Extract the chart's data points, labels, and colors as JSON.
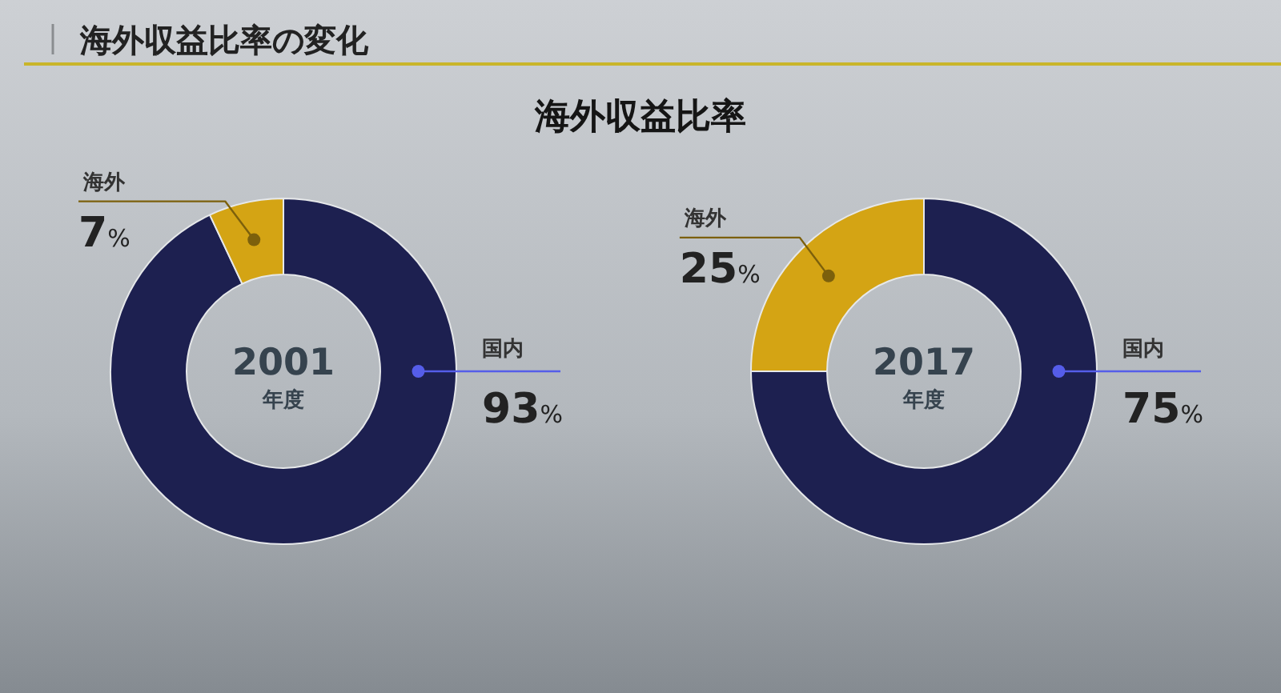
{
  "chart_data": [
    {
      "type": "donut",
      "title": "海外収益比率の変化",
      "subtitle": "海外収益比率",
      "categories": [
        "国内",
        "海外"
      ],
      "values": [
        93,
        7
      ],
      "colors": [
        "#1d2050",
        "#d4a414"
      ],
      "value_labels": [
        "93%",
        "7%"
      ],
      "annotations": [
        "2001",
        "年度"
      ]
    },
    {
      "type": "donut",
      "categories": [
        "国内",
        "海外"
      ],
      "values": [
        75,
        25
      ],
      "colors": [
        "#1d2050",
        "#d4a414"
      ],
      "value_labels": [
        "75%",
        "25%"
      ],
      "annotations": [
        "2017",
        "年度"
      ]
    }
  ]
}
